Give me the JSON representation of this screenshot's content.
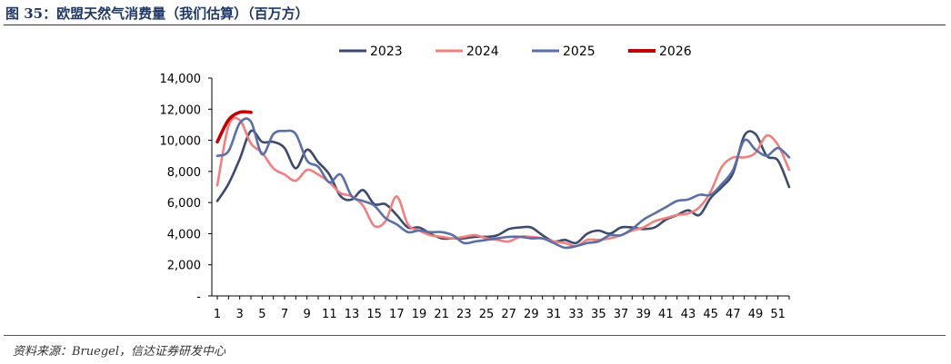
{
  "title": "图 35：欧盟天然气消费量（我们估算）（百万方）",
  "source": "资料来源：Bruegel，信达证券研发中心",
  "chart_data": {
    "type": "line",
    "title": "欧盟天然气消费量（我们估算）（百万方）",
    "xlabel": "",
    "ylabel": "",
    "ylim": [
      0,
      14000
    ],
    "yticks": [
      0,
      2000,
      4000,
      6000,
      8000,
      10000,
      12000,
      14000
    ],
    "ytick_labels": [
      "-",
      "2,000",
      "4,000",
      "6,000",
      "8,000",
      "10,000",
      "12,000",
      "14,000"
    ],
    "xlim": [
      1,
      52
    ],
    "xticks": [
      1,
      3,
      5,
      7,
      9,
      11,
      13,
      15,
      17,
      19,
      21,
      23,
      25,
      27,
      29,
      31,
      33,
      35,
      37,
      39,
      41,
      43,
      45,
      47,
      49,
      51
    ],
    "legend_position": "top-center",
    "series": [
      {
        "name": "2023",
        "color": "#3d4a6b",
        "values": [
          6100,
          7200,
          8800,
          10600,
          9900,
          9900,
          9500,
          8200,
          9400,
          8600,
          7800,
          6400,
          6200,
          6800,
          5900,
          5900,
          5200,
          4400,
          4400,
          4000,
          3700,
          3700,
          3700,
          3800,
          3800,
          3900,
          4300,
          4400,
          4400,
          3900,
          3500,
          3600,
          3400,
          4000,
          4200,
          4000,
          4400,
          4400,
          4300,
          4400,
          4900,
          5200,
          5500,
          5200,
          6300,
          7000,
          7900,
          10300,
          10400,
          9000,
          8700,
          7000
        ]
      },
      {
        "name": "2024",
        "color": "#f08080",
        "values": [
          7100,
          10900,
          11300,
          9800,
          9200,
          8200,
          7800,
          7400,
          8100,
          7800,
          7300,
          6600,
          6400,
          5800,
          4500,
          4800,
          6400,
          4600,
          4200,
          3900,
          3800,
          3700,
          3800,
          3900,
          3700,
          3600,
          3500,
          3800,
          3800,
          3700,
          3500,
          3400,
          3200,
          3600,
          3600,
          3700,
          3900,
          4200,
          4400,
          4800,
          5000,
          5200,
          5300,
          5700,
          6700,
          8300,
          8900,
          8900,
          9200,
          10300,
          9700,
          8100
        ]
      },
      {
        "name": "2025",
        "color": "#5b6fa6",
        "values": [
          9000,
          9300,
          11100,
          11200,
          9100,
          10400,
          10600,
          10400,
          8700,
          8300,
          7300,
          7800,
          6400,
          6100,
          5800,
          5000,
          4600,
          4100,
          4200,
          4100,
          4100,
          3900,
          3400,
          3500,
          3600,
          3700,
          3800,
          3800,
          3700,
          3700,
          3400,
          3100,
          3200,
          3400,
          3500,
          3900,
          3900,
          4300,
          4900,
          5300,
          5700,
          6100,
          6200,
          6500,
          6500,
          7200,
          8100,
          10000,
          9400,
          9000,
          9500,
          8900
        ]
      },
      {
        "name": "2026",
        "color": "#c00000",
        "values": [
          9900,
          11300,
          11800,
          11800
        ]
      }
    ]
  }
}
